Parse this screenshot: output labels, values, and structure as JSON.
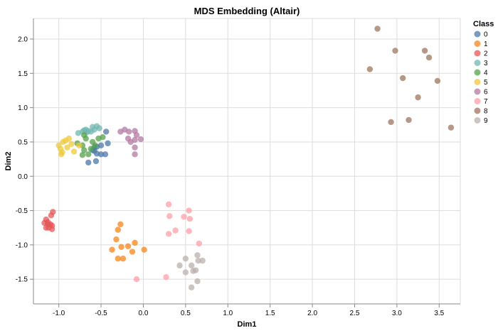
{
  "chart_data": {
    "type": "scatter",
    "title": "MDS Embedding (Altair)",
    "xlabel": "Dim1",
    "ylabel": "Dim2",
    "xlim": [
      -1.3,
      3.75
    ],
    "ylim": [
      -1.86,
      2.3
    ],
    "x_ticks": [
      "-1.0",
      "-0.5",
      "0.0",
      "0.5",
      "1.0",
      "1.5",
      "2.0",
      "2.5",
      "3.0",
      "3.5"
    ],
    "y_ticks": [
      "-1.5",
      "-1.0",
      "-0.5",
      "0.0",
      "0.5",
      "1.0",
      "1.5",
      "2.0"
    ],
    "grid": true,
    "legend": {
      "title": "Class",
      "placement": "right"
    },
    "series": [
      {
        "name": "0",
        "color": "#4c78a8",
        "points": [
          [
            -0.58,
            0.37
          ],
          [
            -0.58,
            0.42
          ],
          [
            -0.55,
            0.43
          ],
          [
            -0.55,
            0.33
          ],
          [
            -0.5,
            0.45
          ],
          [
            -0.45,
            0.32
          ],
          [
            -0.5,
            0.32
          ],
          [
            -0.42,
            0.48
          ],
          [
            -0.44,
            0.65
          ],
          [
            -0.56,
            0.22
          ],
          [
            -0.65,
            0.2
          ],
          [
            -0.6,
            0.38
          ]
        ]
      },
      {
        "name": "1",
        "color": "#f58518",
        "points": [
          [
            -0.27,
            -0.7
          ],
          [
            -0.3,
            -0.78
          ],
          [
            -0.32,
            -0.92
          ],
          [
            -0.37,
            -1.07
          ],
          [
            -0.26,
            -1.03
          ],
          [
            -0.18,
            -1.02
          ],
          [
            -0.1,
            -0.97
          ],
          [
            0.01,
            -1.07
          ],
          [
            -0.13,
            -1.1
          ],
          [
            -0.3,
            -1.2
          ],
          [
            -0.24,
            -1.2
          ]
        ]
      },
      {
        "name": "2",
        "color": "#e45756",
        "points": [
          [
            -1.07,
            -0.52
          ],
          [
            -1.09,
            -0.57
          ],
          [
            -1.15,
            -0.63
          ],
          [
            -1.17,
            -0.68
          ],
          [
            -1.13,
            -0.7
          ],
          [
            -1.1,
            -0.7
          ],
          [
            -1.08,
            -0.72
          ],
          [
            -1.15,
            -0.75
          ],
          [
            -1.12,
            -0.75
          ],
          [
            -1.08,
            -0.77
          ],
          [
            -1.13,
            -0.67
          ]
        ]
      },
      {
        "name": "3",
        "color": "#72b7b2",
        "points": [
          [
            -0.77,
            0.63
          ],
          [
            -0.72,
            0.65
          ],
          [
            -0.68,
            0.68
          ],
          [
            -0.65,
            0.66
          ],
          [
            -0.6,
            0.72
          ],
          [
            -0.55,
            0.73
          ],
          [
            -0.52,
            0.7
          ],
          [
            -0.62,
            0.65
          ],
          [
            -0.67,
            0.64
          ],
          [
            -0.58,
            0.68
          ],
          [
            -0.7,
            0.67
          ]
        ]
      },
      {
        "name": "4",
        "color": "#54a24b",
        "points": [
          [
            -0.78,
            0.48
          ],
          [
            -0.72,
            0.45
          ],
          [
            -0.7,
            0.38
          ],
          [
            -0.65,
            0.32
          ],
          [
            -0.72,
            0.31
          ],
          [
            -0.68,
            0.55
          ],
          [
            -0.6,
            0.5
          ],
          [
            -0.53,
            0.55
          ],
          [
            -0.48,
            0.57
          ],
          [
            -0.57,
            0.45
          ],
          [
            -0.62,
            0.4
          ],
          [
            -0.7,
            0.6
          ]
        ]
      },
      {
        "name": "5",
        "color": "#eeca3b",
        "points": [
          [
            -1.0,
            0.45
          ],
          [
            -0.98,
            0.4
          ],
          [
            -0.96,
            0.35
          ],
          [
            -0.95,
            0.5
          ],
          [
            -0.92,
            0.52
          ],
          [
            -0.88,
            0.55
          ],
          [
            -0.85,
            0.47
          ],
          [
            -0.82,
            0.36
          ],
          [
            -0.76,
            0.45
          ],
          [
            -0.97,
            0.32
          ],
          [
            -0.9,
            0.42
          ]
        ]
      },
      {
        "name": "6",
        "color": "#b279a2",
        "points": [
          [
            -0.27,
            0.65
          ],
          [
            -0.22,
            0.68
          ],
          [
            -0.17,
            0.65
          ],
          [
            -0.1,
            0.66
          ],
          [
            -0.08,
            0.6
          ],
          [
            -0.18,
            0.55
          ],
          [
            -0.15,
            0.5
          ],
          [
            -0.1,
            0.53
          ],
          [
            -0.03,
            0.54
          ],
          [
            -0.1,
            0.42
          ],
          [
            -0.1,
            0.32
          ]
        ]
      },
      {
        "name": "7",
        "color": "#ff9da6",
        "points": [
          [
            0.3,
            -0.41
          ],
          [
            0.31,
            -0.58
          ],
          [
            0.3,
            -0.84
          ],
          [
            0.38,
            -0.79
          ],
          [
            0.48,
            -0.59
          ],
          [
            0.54,
            -0.5
          ],
          [
            0.55,
            -0.62
          ],
          [
            0.54,
            -0.8
          ],
          [
            0.66,
            -0.98
          ],
          [
            0.27,
            -1.47
          ],
          [
            -0.08,
            -1.5
          ]
        ]
      },
      {
        "name": "8",
        "color": "#9d755d",
        "points": [
          [
            2.77,
            2.15
          ],
          [
            2.68,
            1.56
          ],
          [
            2.98,
            1.83
          ],
          [
            3.33,
            1.83
          ],
          [
            3.38,
            1.73
          ],
          [
            3.07,
            1.43
          ],
          [
            3.48,
            1.39
          ],
          [
            3.25,
            1.15
          ],
          [
            3.14,
            0.82
          ],
          [
            2.93,
            0.79
          ],
          [
            3.64,
            0.71
          ]
        ]
      },
      {
        "name": "9",
        "color": "#bab0ac",
        "points": [
          [
            0.43,
            -1.3
          ],
          [
            0.5,
            -1.2
          ],
          [
            0.5,
            -1.4
          ],
          [
            0.57,
            -1.3
          ],
          [
            0.64,
            -1.15
          ],
          [
            0.7,
            -1.23
          ],
          [
            0.65,
            -1.23
          ],
          [
            0.59,
            -1.38
          ],
          [
            0.62,
            -1.37
          ],
          [
            0.64,
            -1.53
          ],
          [
            0.57,
            -1.62
          ]
        ]
      }
    ]
  }
}
